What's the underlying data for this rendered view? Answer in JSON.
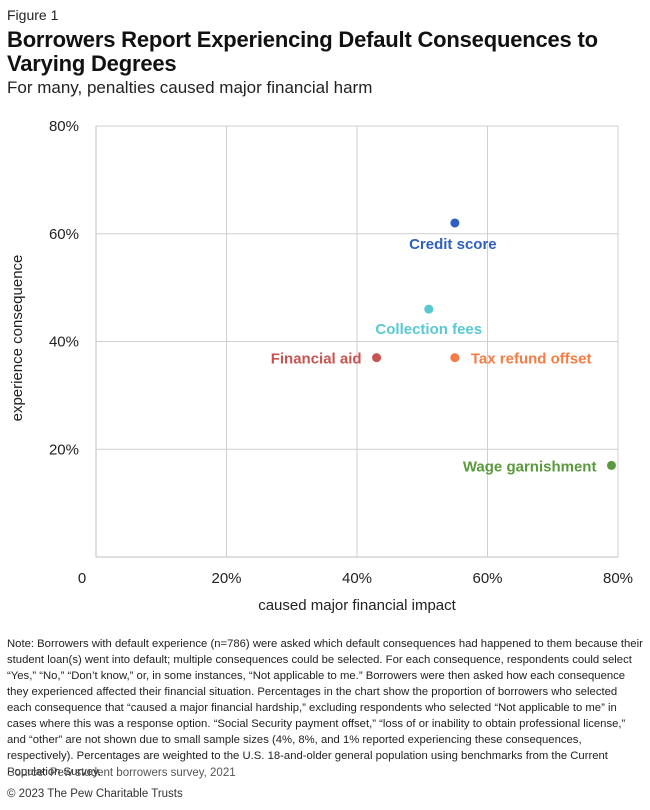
{
  "figure_label": "Figure 1",
  "title": "Borrowers Report Experiencing Default Consequences to Varying Degrees",
  "subtitle": "For many, penalties caused major financial harm",
  "chart_data": {
    "type": "scatter",
    "xlabel": "caused major financial impact",
    "ylabel": "experience consequence",
    "xlim": [
      0,
      80
    ],
    "ylim": [
      0,
      80
    ],
    "x_ticks": [
      0,
      20,
      40,
      60,
      80
    ],
    "x_tick_labels": [
      "0",
      "20%",
      "40%",
      "60%",
      "80%"
    ],
    "y_ticks": [
      20,
      40,
      60,
      80
    ],
    "y_tick_labels": [
      "20%",
      "40%",
      "60%",
      "80%"
    ],
    "grid": true,
    "points": [
      {
        "label": "Credit score",
        "x": 55,
        "y": 62,
        "color": "#2e5fc1"
      },
      {
        "label": "Collection fees",
        "x": 51,
        "y": 46,
        "color": "#5ac8d0"
      },
      {
        "label": "Financial aid",
        "x": 43,
        "y": 37,
        "color": "#c9534f"
      },
      {
        "label": "Tax refund offset",
        "x": 55,
        "y": 37,
        "color": "#f47c45"
      },
      {
        "label": "Wage garnishment",
        "x": 79,
        "y": 17,
        "color": "#5a9a3e"
      }
    ]
  },
  "note": "Note: Borrowers with default experience (n=786) were asked which default consequences had happened to them because their student loan(s) went into default; multiple consequences could be selected. For each consequence, respondents could select “Yes,” “No,” “Don’t know,” or, in some instances, “Not applicable to me.” Borrowers were then asked how each consequence they experienced affected their financial situation. Percentages in the chart show the proportion of borrowers who selected each consequence that “caused a major financial hardship,” excluding respondents who selected “Not applicable to me” in cases where this was a response option. “Social Security payment offset,” “loss of or inability to obtain professional license,” and “other” are not shown due to small sample sizes (4%, 8%, and 1% reported experiencing these consequences, respectively). Percentages are weighted to the U.S. 18-and-older general population using benchmarks from the Current Population Survey.",
  "source": "Source: Pew student borrowers survey, 2021",
  "copyright": "© 2023 The Pew Charitable Trusts"
}
